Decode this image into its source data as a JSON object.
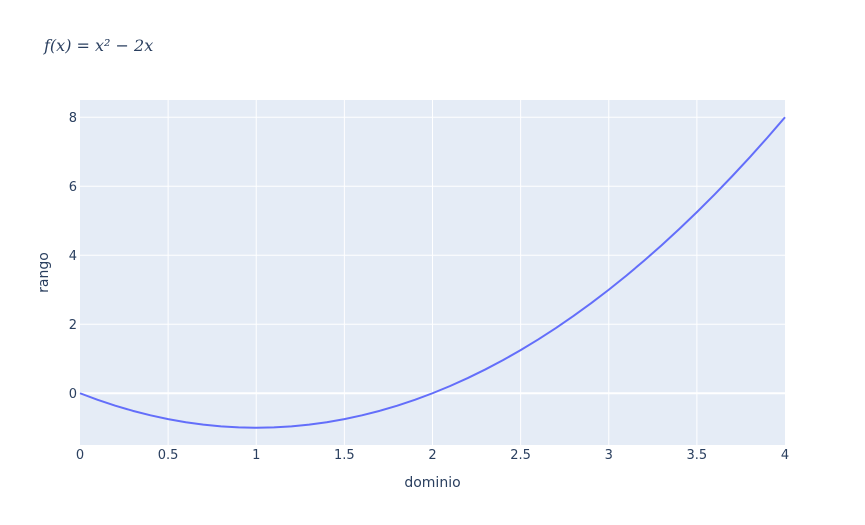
{
  "chart_data": {
    "type": "line",
    "title": "f(x) = x² − 2x",
    "xlabel": "dominio",
    "ylabel": "rango",
    "xlim": [
      0,
      4
    ],
    "ylim": [
      -1.5,
      8.5
    ],
    "x_ticks": [
      0,
      0.5,
      1,
      1.5,
      2,
      2.5,
      3,
      3.5,
      4
    ],
    "y_ticks": [
      0,
      2,
      4,
      6,
      8
    ],
    "x_tick_labels": [
      "0",
      "0.5",
      "1",
      "1.5",
      "2",
      "2.5",
      "3",
      "3.5",
      "4"
    ],
    "y_tick_labels": [
      "0",
      "2",
      "4",
      "6",
      "8"
    ],
    "grid": true,
    "colors": {
      "plot_background": "#e5ecf6",
      "grid": "#ffffff",
      "line": "#636efa",
      "text": "#2a3f5f"
    },
    "series": [
      {
        "x": [
          0,
          0.1,
          0.2,
          0.3,
          0.4,
          0.5,
          0.6,
          0.7,
          0.8,
          0.9,
          1.0,
          1.1,
          1.2,
          1.3,
          1.4,
          1.5,
          1.6,
          1.7,
          1.8,
          1.9,
          2.0,
          2.1,
          2.2,
          2.3,
          2.4,
          2.5,
          2.6,
          2.7,
          2.8,
          2.9,
          3.0,
          3.1,
          3.2,
          3.3,
          3.4,
          3.5,
          3.6,
          3.7,
          3.8,
          3.9,
          4.0
        ],
        "y": [
          0,
          -0.19,
          -0.36,
          -0.51,
          -0.64,
          -0.75,
          -0.84,
          -0.91,
          -0.96,
          -0.99,
          -1.0,
          -0.99,
          -0.96,
          -0.91,
          -0.84,
          -0.75,
          -0.64,
          -0.51,
          -0.36,
          -0.19,
          0,
          0.21,
          0.44,
          0.69,
          0.96,
          1.25,
          1.56,
          1.89,
          2.24,
          2.61,
          3.0,
          3.41,
          3.84,
          4.29,
          4.76,
          5.25,
          5.76,
          6.29,
          6.84,
          7.41,
          8.0
        ]
      }
    ]
  }
}
